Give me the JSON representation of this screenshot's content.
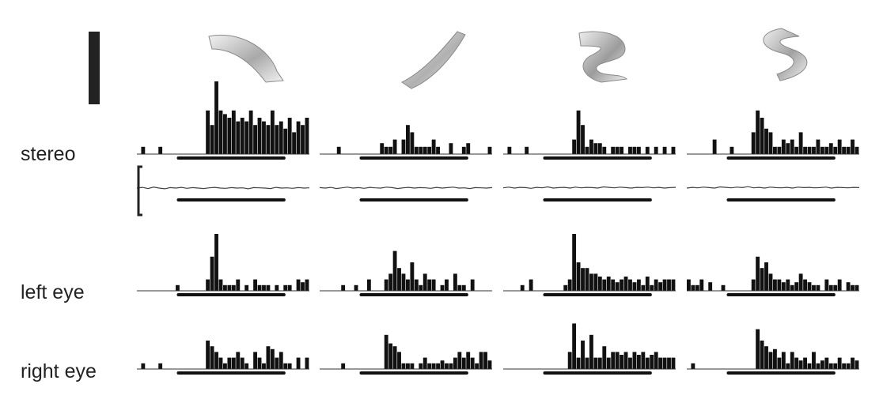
{
  "figure": {
    "row_labels": {
      "stereo": "stereo",
      "left_eye": "left eye",
      "right_eye": "right eye"
    },
    "scale_bar_color": "#222222",
    "bar_color": "#111111",
    "stimuli": [
      {
        "name": "",
        "icon": "ribbon-backslash-icon",
        "shade_light": "#f2f2f2",
        "shade_dark": "#a9a9a9"
      },
      {
        "name": "",
        "icon": "ribbon-slash-icon",
        "shade_light": "#f2f2f2",
        "shade_dark": "#b0b0b0"
      },
      {
        "name": "",
        "icon": "ribbon-z-icon",
        "shade_light": "#efefef",
        "shade_dark": "#9c9c9c"
      },
      {
        "name": "",
        "icon": "ribbon-s-icon",
        "shade_light": "#efefef",
        "shade_dark": "#a2a2a2"
      }
    ]
  },
  "chart_data": {
    "type": "bar",
    "title": "",
    "xlabel": "",
    "ylabel": "",
    "bins_per_histogram": 40,
    "stimulus_period_bins": [
      10,
      33
    ],
    "ylim": [
      0,
      1
    ],
    "rows": [
      {
        "label": "stereo",
        "panels": [
          [
            0,
            0.1,
            0,
            0,
            0,
            0.1,
            0,
            0,
            0,
            0,
            0,
            0,
            0,
            0,
            0,
            0,
            0.6,
            0.4,
            1.0,
            0.6,
            0.55,
            0.5,
            0.6,
            0.45,
            0.5,
            0.45,
            0.6,
            0.4,
            0.5,
            0.45,
            0.4,
            0.6,
            0.4,
            0.45,
            0.35,
            0.5,
            0.3,
            0.45,
            0.4,
            0.5
          ],
          [
            0,
            0,
            0,
            0,
            0.1,
            0,
            0,
            0,
            0,
            0,
            0,
            0,
            0,
            0,
            0.15,
            0.1,
            0.1,
            0.2,
            0,
            0.2,
            0.4,
            0.3,
            0.1,
            0.1,
            0.1,
            0.1,
            0.2,
            0.1,
            0,
            0,
            0.15,
            0,
            0,
            0.1,
            0.15,
            0,
            0,
            0,
            0,
            0.1
          ],
          [
            0,
            0.1,
            0,
            0,
            0,
            0.1,
            0,
            0,
            0,
            0,
            0,
            0,
            0,
            0,
            0,
            0,
            0.2,
            0.6,
            0.4,
            0.1,
            0.2,
            0.15,
            0.15,
            0.1,
            0,
            0.1,
            0.1,
            0.1,
            0,
            0.1,
            0.1,
            0.1,
            0,
            0.1,
            0,
            0.1,
            0,
            0.1,
            0,
            0.1
          ],
          [
            0,
            0,
            0,
            0,
            0,
            0,
            0.2,
            0,
            0,
            0,
            0.1,
            0,
            0,
            0,
            0,
            0.3,
            0.6,
            0.5,
            0.35,
            0.3,
            0.1,
            0.1,
            0.2,
            0.15,
            0.2,
            0.1,
            0.3,
            0.1,
            0.1,
            0.1,
            0.2,
            0.1,
            0.1,
            0.15,
            0.1,
            0.2,
            0.1,
            0.1,
            0.2,
            0.1
          ]
        ]
      },
      {
        "label": "left eye",
        "panels": [
          [
            0,
            0,
            0,
            0,
            0,
            0,
            0,
            0,
            0,
            0.1,
            0,
            0,
            0,
            0,
            0,
            0,
            0.2,
            0.6,
            1.0,
            0.2,
            0.1,
            0.1,
            0.1,
            0.2,
            0,
            0.1,
            0,
            0.2,
            0.1,
            0.1,
            0.1,
            0,
            0.1,
            0,
            0.1,
            0.1,
            0,
            0.2,
            0.15,
            0.2
          ],
          [
            0,
            0,
            0,
            0,
            0,
            0.1,
            0,
            0,
            0.1,
            0,
            0,
            0.2,
            0,
            0,
            0,
            0.2,
            0.3,
            0.7,
            0.4,
            0.3,
            0.2,
            0.5,
            0.2,
            0.1,
            0.3,
            0.2,
            0.2,
            0,
            0.1,
            0.2,
            0,
            0.3,
            0.1,
            0.1,
            0,
            0.2,
            0,
            0,
            0,
            0
          ],
          [
            0,
            0,
            0,
            0,
            0.1,
            0,
            0.2,
            0,
            0,
            0,
            0,
            0,
            0,
            0,
            0.1,
            0.2,
            1.0,
            0.5,
            0.4,
            0.4,
            0.3,
            0.3,
            0.25,
            0.2,
            0.25,
            0.2,
            0.15,
            0.2,
            0.25,
            0.2,
            0.15,
            0.2,
            0.1,
            0.25,
            0.1,
            0.2,
            0.15,
            0.2,
            0.2,
            0.2
          ],
          [
            0.2,
            0.1,
            0.1,
            0.2,
            0,
            0.15,
            0,
            0,
            0.1,
            0,
            0,
            0,
            0,
            0,
            0,
            0.2,
            0.6,
            0.4,
            0.5,
            0.3,
            0.2,
            0.2,
            0.15,
            0.2,
            0.1,
            0.15,
            0.3,
            0.2,
            0.15,
            0.1,
            0.1,
            0,
            0.2,
            0.1,
            0.1,
            0.2,
            0,
            0.15,
            0.1,
            0.1
          ]
        ]
      },
      {
        "label": "right eye",
        "panels": [
          [
            0,
            0.1,
            0,
            0,
            0,
            0.1,
            0,
            0,
            0,
            0,
            0,
            0,
            0,
            0,
            0,
            0,
            0.5,
            0.4,
            0.3,
            0.2,
            0.1,
            0.2,
            0.2,
            0.3,
            0.2,
            0.1,
            0,
            0.3,
            0.2,
            0.1,
            0.4,
            0.35,
            0.2,
            0.3,
            0.1,
            0.1,
            0,
            0.2,
            0,
            0.2
          ],
          [
            0,
            0,
            0,
            0,
            0,
            0.1,
            0,
            0,
            0,
            0,
            0,
            0,
            0,
            0,
            0,
            0.6,
            0.45,
            0.4,
            0.3,
            0.1,
            0.1,
            0.1,
            0,
            0.1,
            0.2,
            0.1,
            0.1,
            0.1,
            0.15,
            0.1,
            0.1,
            0.2,
            0.3,
            0.2,
            0.3,
            0.2,
            0.1,
            0.3,
            0.3,
            0.15
          ],
          [
            0,
            0,
            0,
            0,
            0,
            0,
            0,
            0,
            0,
            0,
            0,
            0,
            0,
            0,
            0,
            0.3,
            0.8,
            0.2,
            0.5,
            0.2,
            0.6,
            0.2,
            0.2,
            0.4,
            0.2,
            0.3,
            0.3,
            0.25,
            0.3,
            0.2,
            0.3,
            0.25,
            0.3,
            0.2,
            0.25,
            0.3,
            0.2,
            0.2,
            0.2,
            0.2
          ],
          [
            0,
            0.1,
            0,
            0,
            0,
            0,
            0,
            0,
            0,
            0,
            0,
            0,
            0,
            0,
            0,
            0,
            0.7,
            0.5,
            0.4,
            0.3,
            0.35,
            0.2,
            0.3,
            0.1,
            0.3,
            0.2,
            0.15,
            0.2,
            0.1,
            0.3,
            0.1,
            0.15,
            0.2,
            0.1,
            0.1,
            0.2,
            0.1,
            0.1,
            0.2,
            0.15
          ]
        ]
      }
    ],
    "eye_position_traces": [
      [
        0,
        0.3,
        -0.2,
        0.4,
        0,
        -0.3,
        0.2,
        0,
        0.3,
        -0.1,
        0.2,
        0,
        -0.2,
        0.1,
        0.3,
        0,
        -0.1,
        0.2,
        0,
        0.1,
        -0.3,
        0.2,
        0.1,
        0,
        -0.2,
        0.3,
        0,
        0.1,
        -0.1,
        0.2,
        0,
        0.1
      ],
      [
        0.2,
        0,
        0.3,
        -0.2,
        0.1,
        0.4,
        0,
        0.2,
        -0.1,
        0.3,
        0.1,
        0,
        0.4,
        0.2,
        -0.2,
        0.1,
        0.3,
        0,
        0.2,
        0.1,
        -0.1,
        0.3,
        0,
        0.2,
        0.4,
        0,
        0.1,
        -0.2,
        0.2,
        0.1,
        0,
        0.2
      ],
      [
        0.1,
        0.4,
        0,
        0.3,
        0.2,
        -0.1,
        0.3,
        0.1,
        0.5,
        0,
        0.2,
        0.3,
        0,
        0.4,
        0.1,
        0.3,
        0.2,
        0,
        0.5,
        0.3,
        0.1,
        0.4,
        0.2,
        0,
        0.3,
        0.2,
        0.4,
        0.1,
        0.3,
        0,
        0.2,
        0.3
      ],
      [
        0,
        0.3,
        0.1,
        0.4,
        0.2,
        0,
        0.5,
        0.3,
        0.1,
        0.4,
        0.2,
        0.6,
        0.1,
        0.3,
        0,
        0.4,
        0.2,
        0.1,
        0.3,
        0,
        0.4,
        0.2,
        0.3,
        0.1,
        0.2,
        0.4,
        0,
        0.3,
        0.2,
        0.1,
        0.3,
        0.2
      ]
    ]
  }
}
